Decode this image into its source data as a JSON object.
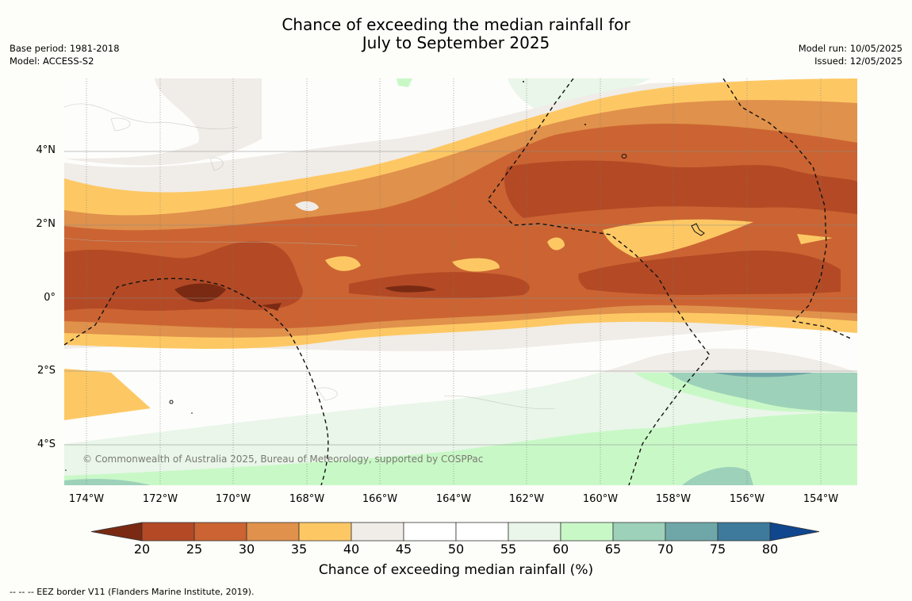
{
  "title_line1": "Chance of exceeding the median rainfall for",
  "title_line2": "July to September 2025",
  "base_period": "Base period: 1981-2018",
  "model": "Model: ACCESS-S2",
  "model_run": "Model run: 10/05/2025",
  "issued": "Issued: 12/05/2025",
  "lat_labels": [
    "4°N",
    "2°N",
    "0°",
    "2°S",
    "4°S"
  ],
  "lon_labels": [
    "174°W",
    "172°W",
    "170°W",
    "168°W",
    "166°W",
    "164°W",
    "162°W",
    "160°W",
    "158°W",
    "156°W",
    "154°W"
  ],
  "colorbar": {
    "ticks": [
      "20",
      "25",
      "30",
      "35",
      "40",
      "45",
      "50",
      "55",
      "60",
      "65",
      "70",
      "75",
      "80"
    ],
    "colors": [
      "#7a2a13",
      "#b34a25",
      "#cb6432",
      "#e0914b",
      "#fdc864",
      "#f0ece8",
      "#ffffff",
      "#ffffff",
      "#e9f6e9",
      "#c9f8c7",
      "#9dd1b9",
      "#6fa7a8",
      "#3d7a9c",
      "#0f468e"
    ],
    "label": "Chance of exceeding median rainfall (%)"
  },
  "copyright": "© Commonwealth of Australia 2025, Bureau of Meteorology, supported by COSPPac",
  "footnote": "--  --  -- EEZ border V11 (Flanders Marine Institute, 2019)."
}
